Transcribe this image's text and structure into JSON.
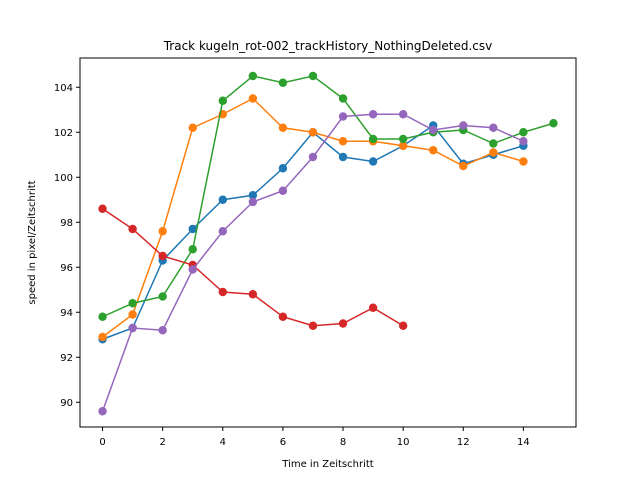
{
  "chart_data": {
    "type": "line",
    "title": "Track kugeln_rot-002_trackHistory_NothingDeleted.csv",
    "xlabel": "Time in Zeitschritt",
    "ylabel": "speed in pixel/Zeitschritt",
    "xlim": [
      -0.75,
      15.75
    ],
    "ylim": [
      88.9,
      105.3
    ],
    "xticks": [
      "0",
      "2",
      "4",
      "6",
      "8",
      "10",
      "12",
      "14"
    ],
    "yticks": [
      "90",
      "92",
      "94",
      "96",
      "98",
      "100",
      "102",
      "104"
    ],
    "grid": false,
    "series": [
      {
        "color": "#1f77b4",
        "x": [
          0,
          1,
          2,
          3,
          4,
          5,
          6,
          7,
          8,
          9,
          10,
          11,
          12,
          13,
          14
        ],
        "y": [
          92.8,
          93.3,
          96.3,
          97.7,
          99.0,
          99.2,
          100.4,
          102.0,
          100.9,
          100.7,
          101.4,
          102.3,
          100.6,
          101.0,
          101.4
        ]
      },
      {
        "color": "#ff7f0e",
        "x": [
          0,
          1,
          2,
          3,
          4,
          5,
          6,
          7,
          8,
          9,
          10,
          11,
          12,
          13,
          14
        ],
        "y": [
          92.9,
          93.9,
          97.6,
          102.2,
          102.8,
          103.5,
          102.2,
          102.0,
          101.6,
          101.6,
          101.4,
          101.2,
          100.5,
          101.1,
          100.7
        ]
      },
      {
        "color": "#2ca02c",
        "x": [
          0,
          1,
          2,
          3,
          4,
          5,
          6,
          7,
          8,
          9,
          10,
          11,
          12,
          13,
          14,
          15
        ],
        "y": [
          93.8,
          94.4,
          94.7,
          96.8,
          103.4,
          104.5,
          104.2,
          104.5,
          103.5,
          101.7,
          101.7,
          102.0,
          102.1,
          101.5,
          102.0,
          102.4
        ]
      },
      {
        "color": "#d62728",
        "x": [
          0,
          1,
          2,
          3,
          4,
          5,
          6,
          7,
          8,
          9,
          10
        ],
        "y": [
          98.6,
          97.7,
          96.5,
          96.1,
          94.9,
          94.8,
          93.8,
          93.4,
          93.5,
          94.2,
          93.4
        ]
      },
      {
        "color": "#9467bd",
        "x": [
          0,
          1,
          2,
          3,
          4,
          5,
          6,
          7,
          8,
          9,
          10,
          11,
          12,
          13,
          14
        ],
        "y": [
          89.6,
          93.3,
          93.2,
          95.9,
          97.6,
          98.9,
          99.4,
          100.9,
          102.7,
          102.8,
          102.8,
          102.1,
          102.3,
          102.2,
          101.6
        ]
      }
    ]
  }
}
